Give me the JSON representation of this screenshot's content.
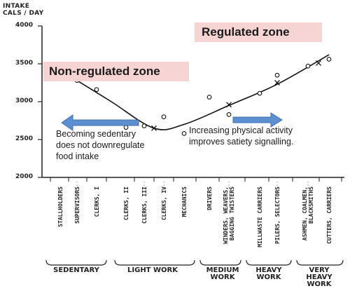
{
  "chart_data": {
    "type": "scatter",
    "ylabel": "INTAKE\nCALS / DAY",
    "ylim": [
      2000,
      4000
    ],
    "yticks": [
      2000,
      2500,
      3000,
      3500,
      4000
    ],
    "grid": false,
    "categories": [
      "STALLHOLDERS",
      "SUPERVISORS",
      "CLERKS, I",
      "CLERKS, II",
      "CLERKS, III",
      "CLERKS, IV",
      "MECHANICS",
      "DRIVERS",
      "WINDERS, WEAVERS,\nBAGGING TWISTERS",
      "MILLWASTE CARRIERS",
      "PILERS, SELECTORS",
      "ASHMEN, COALMEN,\nBLACKSMITHS",
      "CUTTERS, CARRIERS"
    ],
    "groups": [
      "SEDENTARY",
      "LIGHT WORK",
      "MEDIUM\nWORK",
      "HEAVY\nWORK",
      "VERY\nHEAVY\nWORK"
    ],
    "circles": [
      {
        "cat": 1,
        "y": 3280
      },
      {
        "cat": 2,
        "y": 3160
      },
      {
        "cat": 3,
        "y": 2660
      },
      {
        "cat": 4,
        "y": 2680
      },
      {
        "cat": 5,
        "y": 2800
      },
      {
        "cat": 6,
        "y": 2580
      },
      {
        "cat": 7,
        "y": 3060
      },
      {
        "cat": 8,
        "y": 2830
      },
      {
        "cat": 9,
        "y": 3110
      },
      {
        "cat": 10,
        "y": 3350
      },
      {
        "cat": 11,
        "y": 3470
      },
      {
        "cat": 12,
        "y": 3560
      }
    ],
    "crosses": [
      {
        "cat": 4.5,
        "y": 2650
      },
      {
        "cat": 8,
        "y": 2960
      },
      {
        "cat": 10,
        "y": 3250
      },
      {
        "cat": 11.5,
        "y": 3510
      }
    ],
    "trend": [
      {
        "cat": 1,
        "y": 3280
      },
      {
        "cat": 2.5,
        "y": 3000
      },
      {
        "cat": 4.5,
        "y": 2650
      },
      {
        "cat": 6,
        "y": 2700
      },
      {
        "cat": 8,
        "y": 2950
      },
      {
        "cat": 10,
        "y": 3230
      },
      {
        "cat": 12,
        "y": 3620
      }
    ]
  },
  "annotations": {
    "regulated_zone": "Regulated zone",
    "non_regulated_zone": "Non-regulated zone",
    "left_note": "Becoming sedentary\ndoes not downregulate\nfood intake",
    "right_note": "Increasing physical activity\nimproves satiety signalling."
  },
  "colors": {
    "zone_fill": "#f6d4d4",
    "arrow_fill": "#5b8fcf",
    "arrow_stroke": "#4472b4",
    "ink": "#222222"
  }
}
